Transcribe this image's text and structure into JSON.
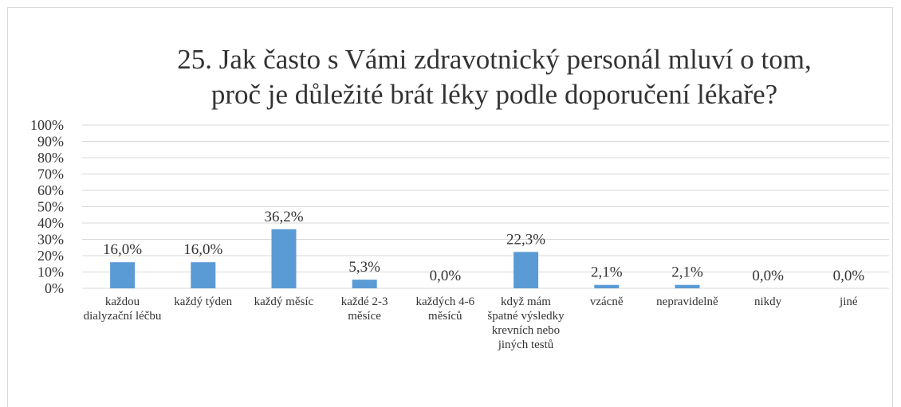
{
  "chart_data": {
    "type": "bar",
    "title": [
      "25. Jak často s Vámi zdravotnický personál mluví o tom,",
      "proč je důležité brát léky podle doporučení lékaře?"
    ],
    "categories": [
      "každou dialyzační léčbu",
      "každý týden",
      "každý měsíc",
      "každé 2-3 měsíce",
      "každých 4-6 měsíců",
      "když mám špatné výsledky krevních nebo jiných testů",
      "vzácně",
      "nepravidelně",
      "nikdy",
      "jiné"
    ],
    "values": [
      16.0,
      16.0,
      36.2,
      5.3,
      0.0,
      22.3,
      2.1,
      2.1,
      0.0,
      0.0
    ],
    "value_labels": [
      "16,0%",
      "16,0%",
      "36,2%",
      "5,3%",
      "0,0%",
      "22,3%",
      "2,1%",
      "2,1%",
      "0,0%",
      "0,0%"
    ],
    "color": "#5b9bd5",
    "ylim": [
      0,
      100
    ],
    "yticks": [
      {
        "value": 0,
        "label": "0%"
      },
      {
        "value": 10,
        "label": "10%"
      },
      {
        "value": 20,
        "label": "20%"
      },
      {
        "value": 30,
        "label": "30%"
      },
      {
        "value": 40,
        "label": "40%"
      },
      {
        "value": 50,
        "label": "50%"
      },
      {
        "value": 60,
        "label": "60%"
      },
      {
        "value": 70,
        "label": "70%"
      },
      {
        "value": 80,
        "label": "80%"
      },
      {
        "value": 90,
        "label": "90%"
      },
      {
        "value": 100,
        "label": "100%"
      }
    ],
    "grid": true
  }
}
